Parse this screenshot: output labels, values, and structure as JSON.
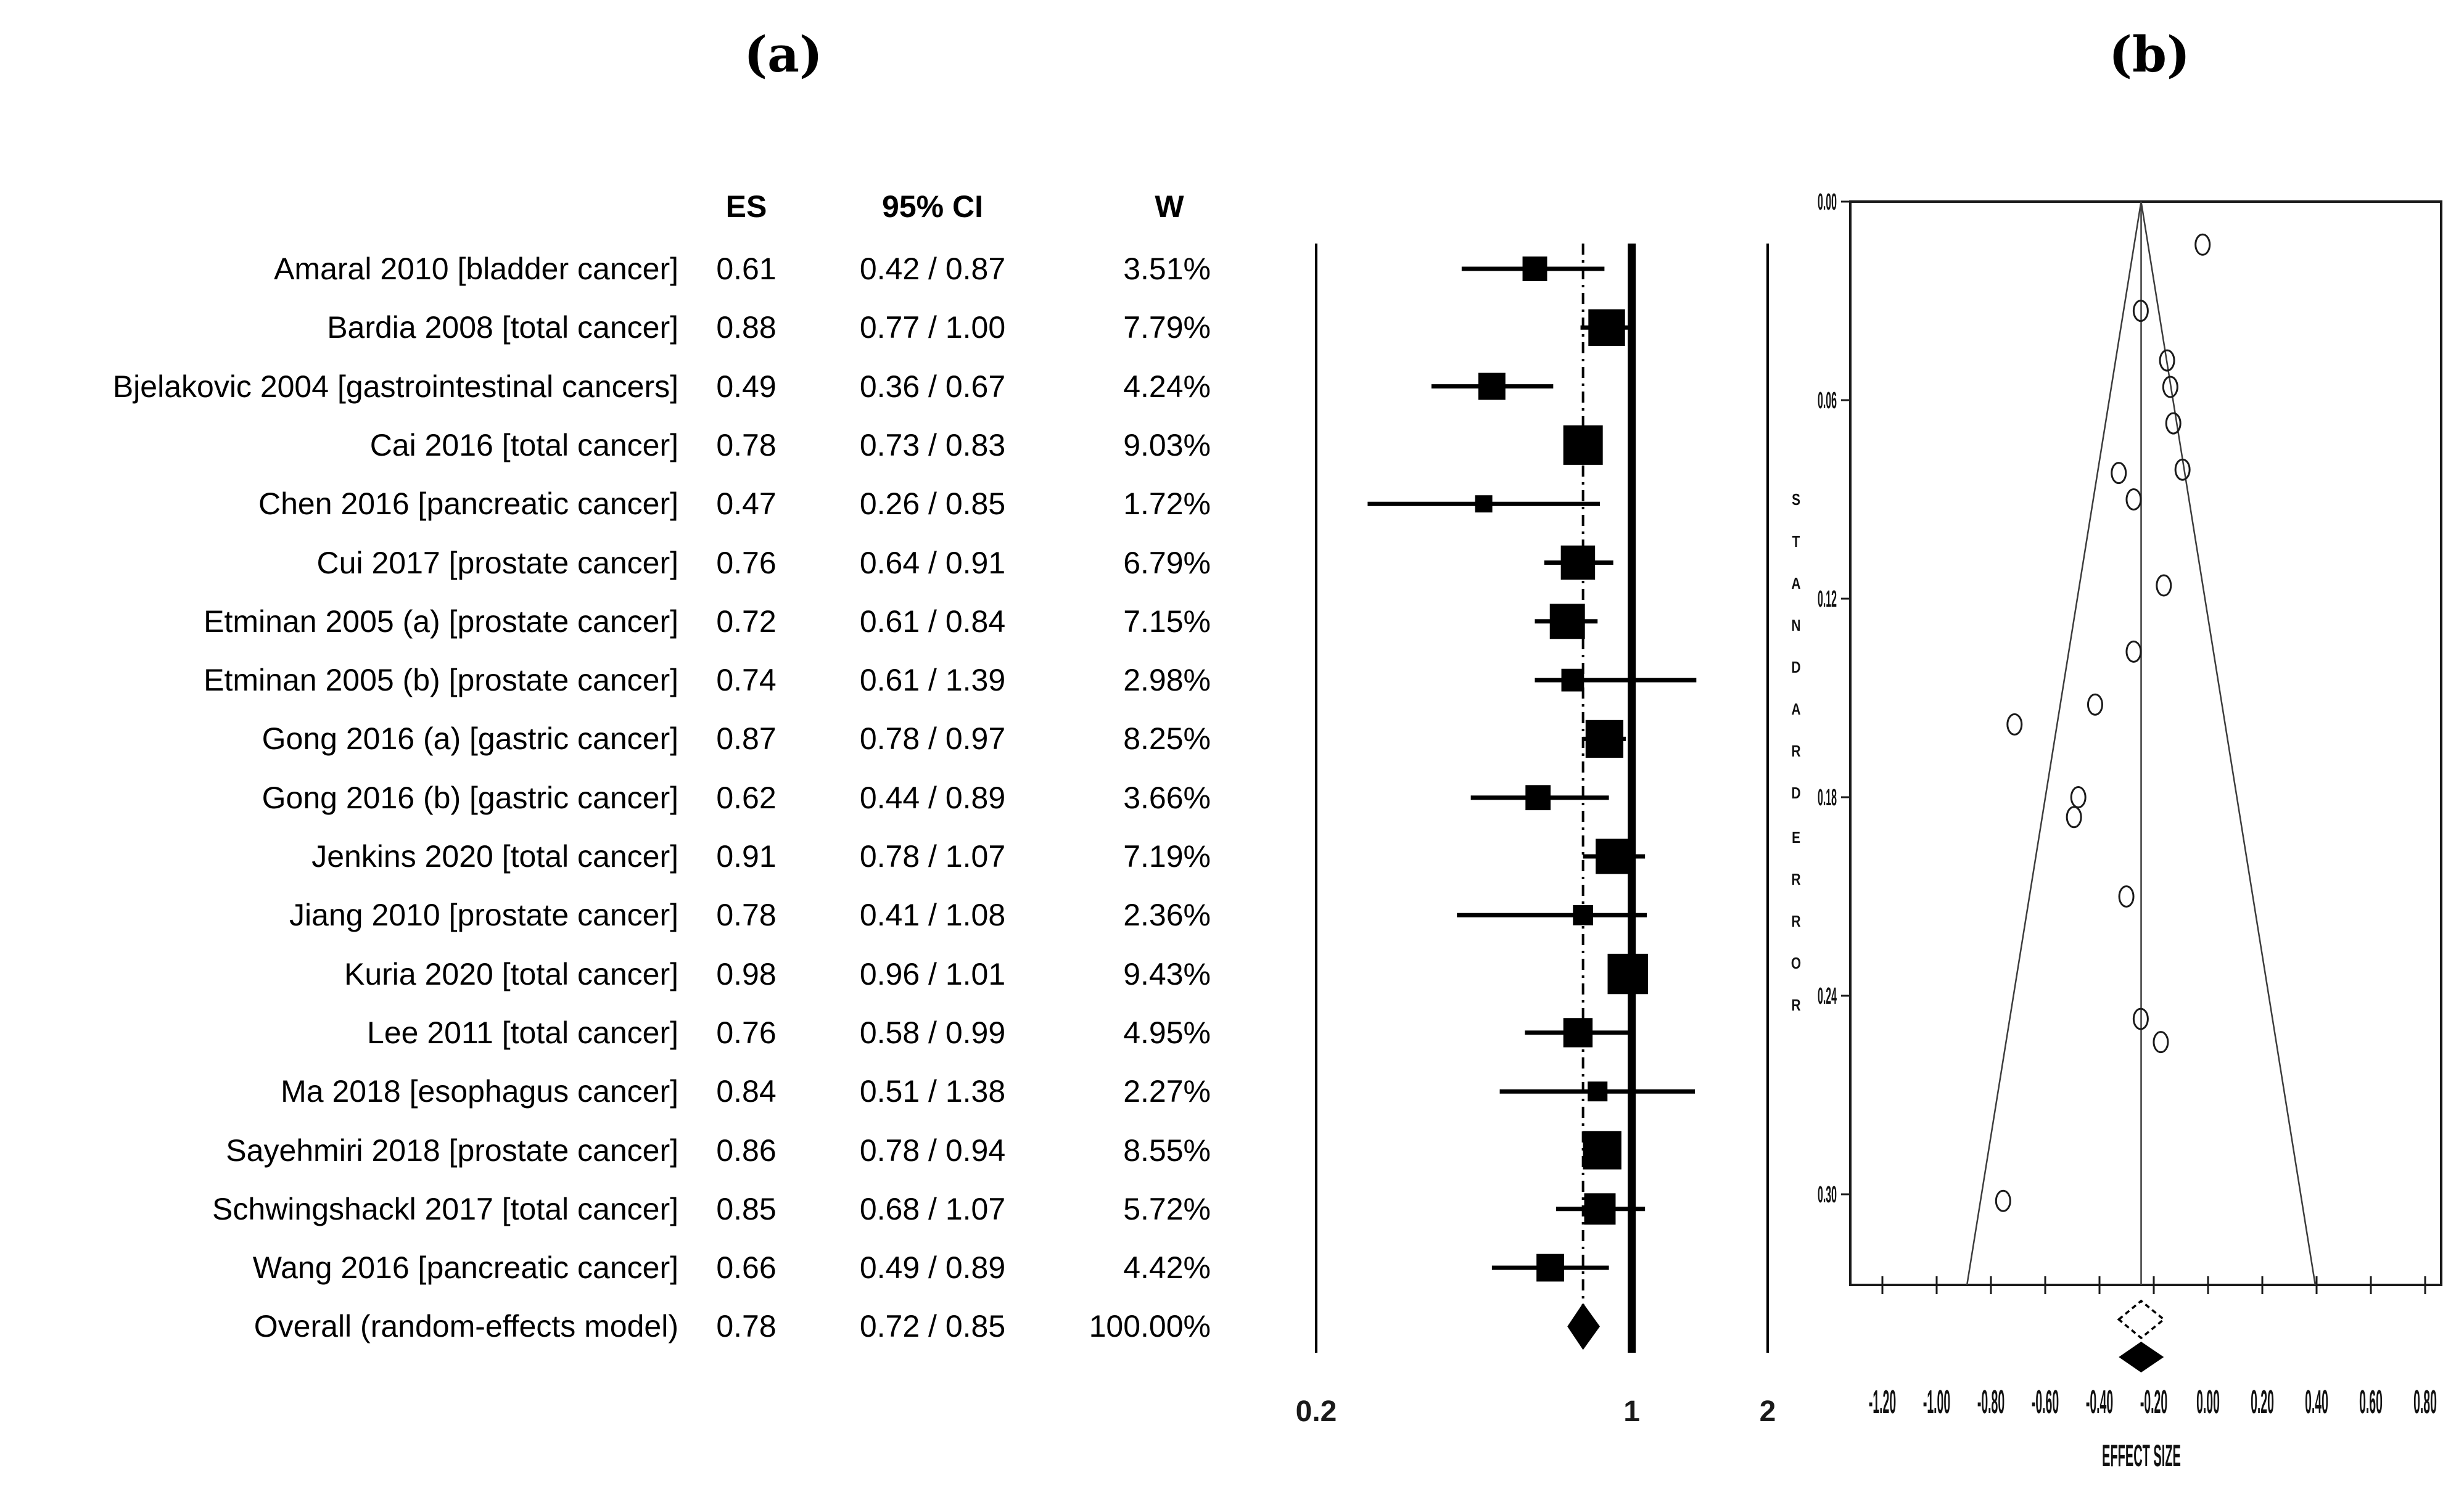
{
  "panels": {
    "a": "(a)",
    "b": "(b)"
  },
  "table": {
    "headers": {
      "es": "ES",
      "ci": "95% CI",
      "w": "W"
    },
    "rows": [
      {
        "label": "Amaral 2010 [bladder cancer]",
        "es": "0.61",
        "ci": "0.42 / 0.87",
        "w": "3.51%"
      },
      {
        "label": "Bardia 2008 [total cancer]",
        "es": "0.88",
        "ci": "0.77 / 1.00",
        "w": "7.79%"
      },
      {
        "label": "Bjelakovic 2004 [gastrointestinal cancers]",
        "es": "0.49",
        "ci": "0.36 / 0.67",
        "w": "4.24%"
      },
      {
        "label": "Cai 2016 [total cancer]",
        "es": "0.78",
        "ci": "0.73 / 0.83",
        "w": "9.03%"
      },
      {
        "label": "Chen 2016 [pancreatic cancer]",
        "es": "0.47",
        "ci": "0.26 / 0.85",
        "w": "1.72%"
      },
      {
        "label": "Cui 2017 [prostate cancer]",
        "es": "0.76",
        "ci": "0.64 / 0.91",
        "w": "6.79%"
      },
      {
        "label": "Etminan 2005 (a) [prostate cancer]",
        "es": "0.72",
        "ci": "0.61 / 0.84",
        "w": "7.15%"
      },
      {
        "label": "Etminan 2005 (b) [prostate cancer]",
        "es": "0.74",
        "ci": "0.61 / 1.39",
        "w": "2.98%"
      },
      {
        "label": "Gong 2016 (a) [gastric cancer]",
        "es": "0.87",
        "ci": "0.78 / 0.97",
        "w": "8.25%"
      },
      {
        "label": "Gong 2016 (b) [gastric cancer]",
        "es": "0.62",
        "ci": "0.44 / 0.89",
        "w": "3.66%"
      },
      {
        "label": "Jenkins 2020 [total cancer]",
        "es": "0.91",
        "ci": "0.78 / 1.07",
        "w": "7.19%"
      },
      {
        "label": "Jiang 2010 [prostate cancer]",
        "es": "0.78",
        "ci": "0.41 / 1.08",
        "w": "2.36%"
      },
      {
        "label": "Kuria 2020 [total cancer]",
        "es": "0.98",
        "ci": "0.96 / 1.01",
        "w": "9.43%"
      },
      {
        "label": "Lee 2011 [total cancer]",
        "es": "0.76",
        "ci": "0.58 / 0.99",
        "w": "4.95%"
      },
      {
        "label": "Ma 2018 [esophagus cancer]",
        "es": "0.84",
        "ci": "0.51 / 1.38",
        "w": "2.27%"
      },
      {
        "label": "Sayehmiri 2018 [prostate cancer]",
        "es": "0.86",
        "ci": "0.78 / 0.94",
        "w": "8.55%"
      },
      {
        "label": "Schwingshackl 2017 [total cancer]",
        "es": "0.85",
        "ci": "0.68 / 1.07",
        "w": "5.72%"
      },
      {
        "label": "Wang 2016 [pancreatic cancer]",
        "es": "0.66",
        "ci": "0.49 / 0.89",
        "w": "4.42%"
      },
      {
        "label": "Overall (random-effects model)",
        "es": "0.78",
        "ci": "0.72 / 0.85",
        "w": "100.00%"
      }
    ]
  },
  "chart_data": [
    {
      "type": "forest",
      "title": "(a)",
      "x_scale": "log",
      "x_ticks": [
        "0.2",
        "1",
        "2"
      ],
      "xlim": [
        0.2,
        2
      ],
      "null_line": 1,
      "overall_line": 0.78,
      "studies": [
        {
          "es": 0.61,
          "lo": 0.42,
          "hi": 0.87,
          "weight": 3.51
        },
        {
          "es": 0.88,
          "lo": 0.77,
          "hi": 1.0,
          "weight": 7.79
        },
        {
          "es": 0.49,
          "lo": 0.36,
          "hi": 0.67,
          "weight": 4.24
        },
        {
          "es": 0.78,
          "lo": 0.73,
          "hi": 0.83,
          "weight": 9.03
        },
        {
          "es": 0.47,
          "lo": 0.26,
          "hi": 0.85,
          "weight": 1.72
        },
        {
          "es": 0.76,
          "lo": 0.64,
          "hi": 0.91,
          "weight": 6.79
        },
        {
          "es": 0.72,
          "lo": 0.61,
          "hi": 0.84,
          "weight": 7.15
        },
        {
          "es": 0.74,
          "lo": 0.61,
          "hi": 1.39,
          "weight": 2.98
        },
        {
          "es": 0.87,
          "lo": 0.78,
          "hi": 0.97,
          "weight": 8.25
        },
        {
          "es": 0.62,
          "lo": 0.44,
          "hi": 0.89,
          "weight": 3.66
        },
        {
          "es": 0.91,
          "lo": 0.78,
          "hi": 1.07,
          "weight": 7.19
        },
        {
          "es": 0.78,
          "lo": 0.41,
          "hi": 1.08,
          "weight": 2.36
        },
        {
          "es": 0.98,
          "lo": 0.96,
          "hi": 1.01,
          "weight": 9.43
        },
        {
          "es": 0.76,
          "lo": 0.58,
          "hi": 0.99,
          "weight": 4.95
        },
        {
          "es": 0.84,
          "lo": 0.51,
          "hi": 1.38,
          "weight": 2.27
        },
        {
          "es": 0.86,
          "lo": 0.78,
          "hi": 0.94,
          "weight": 8.55
        },
        {
          "es": 0.85,
          "lo": 0.68,
          "hi": 1.07,
          "weight": 5.72
        },
        {
          "es": 0.66,
          "lo": 0.49,
          "hi": 0.89,
          "weight": 4.42
        }
      ],
      "overall": {
        "es": 0.78,
        "lo": 0.72,
        "hi": 0.85,
        "weight": 100.0
      }
    },
    {
      "type": "scatter",
      "subtype": "funnel",
      "title": "(b)",
      "xlabel": "EFFECT SIZE",
      "ylabel": "STANDARD ERROR",
      "xtick_labels": [
        "-1.20",
        "-1.00",
        "-0.80",
        "-0.60",
        "-0.40",
        "-0.20",
        "0.00",
        "0.20",
        "0.40",
        "0.60",
        "0.80"
      ],
      "ytick_labels": [
        "0.00",
        "0.06",
        "0.12",
        "0.18",
        "0.24",
        "0.30"
      ],
      "xlim": [
        -1.318,
        0.862
      ],
      "ylim": [
        0,
        0.327
      ],
      "center_line": -0.2466,
      "pseudo_ci_multiplier": 1.96,
      "points": [
        [
          -0.494,
          0.186
        ],
        [
          -0.128,
          0.067
        ],
        [
          -0.713,
          0.158
        ],
        [
          -0.248,
          0.033
        ],
        [
          -0.755,
          0.302
        ],
        [
          -0.274,
          0.09
        ],
        [
          -0.329,
          0.082
        ],
        [
          -0.301,
          0.21
        ],
        [
          -0.139,
          0.056
        ],
        [
          -0.478,
          0.18
        ],
        [
          -0.094,
          0.081
        ],
        [
          -0.248,
          0.247
        ],
        [
          -0.02,
          0.013
        ],
        [
          -0.274,
          0.136
        ],
        [
          -0.174,
          0.254
        ],
        [
          -0.151,
          0.048
        ],
        [
          -0.163,
          0.116
        ],
        [
          -0.416,
          0.152
        ]
      ],
      "diamonds": [
        {
          "style": "open",
          "center": -0.2466,
          "ci": [
            -0.329,
            -0.163
          ]
        },
        {
          "style": "filled",
          "center": -0.2466,
          "ci": [
            -0.329,
            -0.163
          ]
        }
      ]
    }
  ]
}
